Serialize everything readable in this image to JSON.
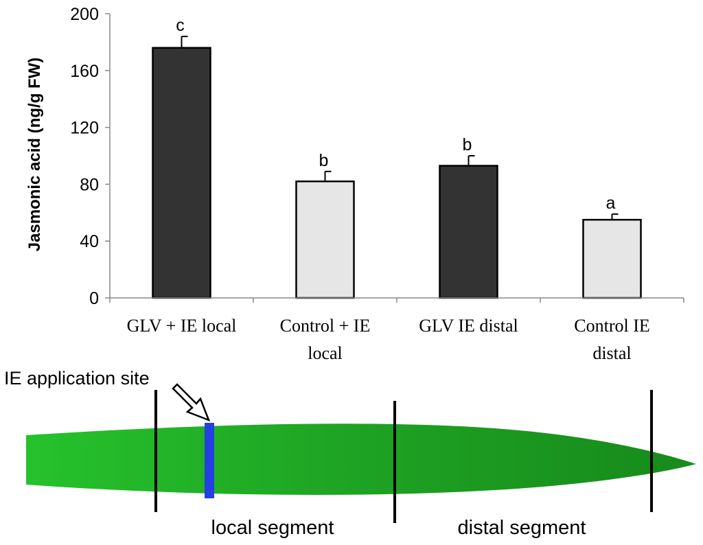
{
  "chart_data": {
    "type": "bar",
    "title": "",
    "xlabel": "",
    "ylabel": "Jasmonic acid (ng/g FW)",
    "ylim": [
      0,
      200
    ],
    "yticks": [
      0,
      40,
      80,
      120,
      160,
      200
    ],
    "categories": [
      [
        "GLV + IE local"
      ],
      [
        "Control + IE",
        "local"
      ],
      [
        "GLV IE distal"
      ],
      [
        "Control IE",
        "distal"
      ]
    ],
    "values": [
      176,
      82,
      93,
      55
    ],
    "errors": [
      8,
      7,
      7,
      4
    ],
    "significance_letters": [
      "c",
      "b",
      "b",
      "a"
    ],
    "bar_colors": [
      "#333333",
      "#e6e6e6",
      "#333333",
      "#e6e6e6"
    ]
  },
  "diagram": {
    "application_site_label": "IE application site",
    "local_segment_label": "local segment",
    "distal_segment_label": "distal segment",
    "leaf_color": "#22b82a",
    "leaf_color_dark": "#1a8f1c",
    "application_band_color": "#2440e0"
  }
}
